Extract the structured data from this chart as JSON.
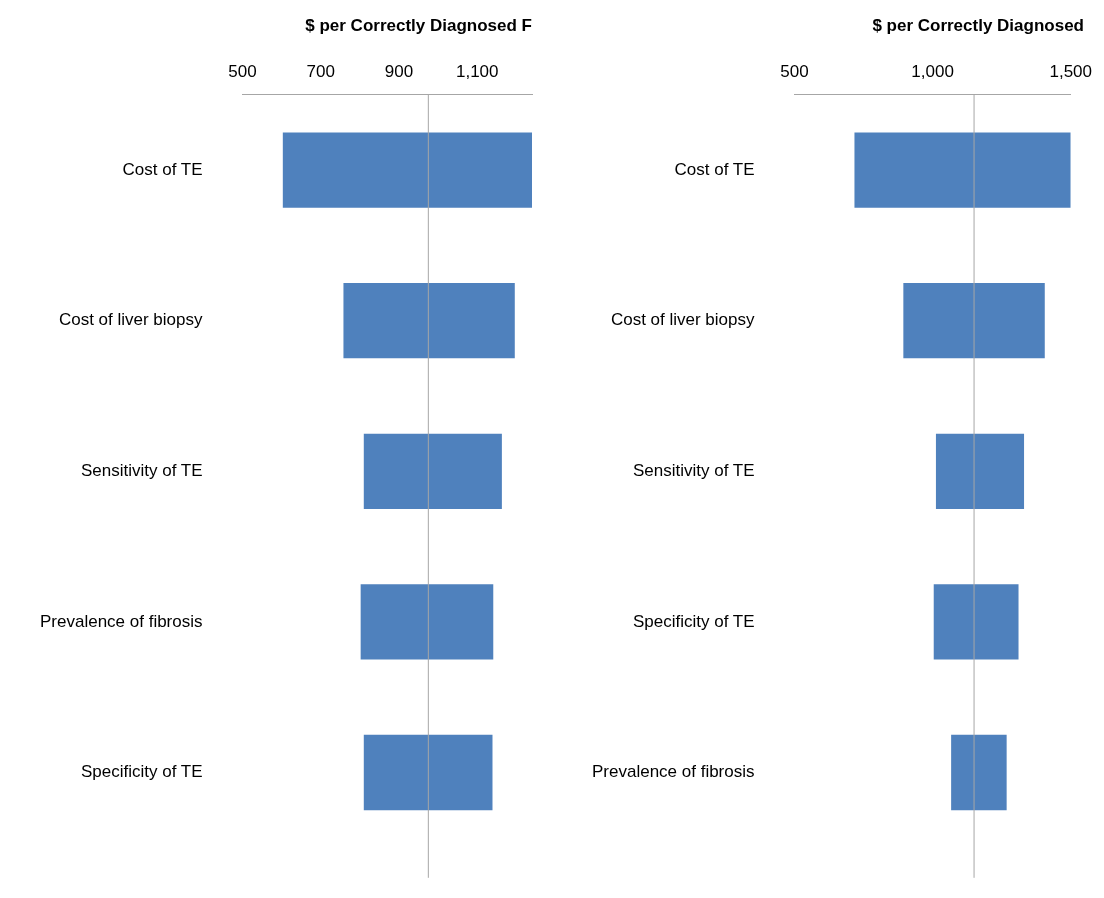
{
  "chart_data": [
    {
      "type": "bar",
      "orientation": "horizontal",
      "title": "$ per Correctly Diagnosed F",
      "categories": [
        "Cost of TE",
        "Cost of liver biopsy",
        "Sensitivity of TE",
        "Prevalence of fibrosis",
        "Specificity of TE"
      ],
      "base": [
        603,
        758,
        810,
        802,
        810
      ],
      "values": [
        637,
        438,
        353,
        339,
        329
      ],
      "color": "#4f81bd",
      "xlim": [
        500,
        1240
      ],
      "xticks": [
        500,
        700,
        900,
        {
          "value": 1100,
          "label": "1,100"
        }
      ],
      "ref_lines": [
        {
          "axis": "x",
          "value": 975,
          "color": "#a6a6a6"
        }
      ],
      "grid": false,
      "legend": false
    },
    {
      "type": "bar",
      "orientation": "horizontal",
      "title": "$ per Correctly Diagnosed",
      "categories": [
        "Cost of TE",
        "Cost of liver biopsy",
        "Sensitivity of TE",
        "Specificity of TE",
        "Prevalence of fibrosis"
      ],
      "base": [
        717,
        894,
        1012,
        1004,
        1067
      ],
      "values": [
        783,
        512,
        319,
        307,
        201
      ],
      "color": "#4f81bd",
      "xlim": [
        500,
        1500
      ],
      "xticks": [
        500,
        {
          "value": 1000,
          "label": "1,000"
        },
        {
          "value": 1500,
          "label": "1,500"
        }
      ],
      "ref_lines": [
        {
          "axis": "x",
          "value": 1150,
          "color": "#a6a6a6"
        }
      ],
      "grid": false,
      "legend": false
    }
  ]
}
